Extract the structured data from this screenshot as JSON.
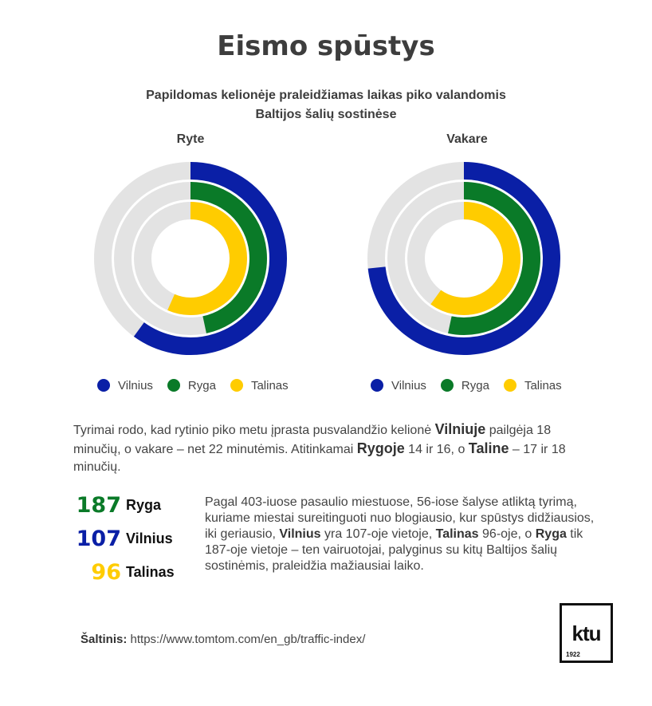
{
  "header": {
    "title": "Eismo spūstys",
    "subtitle_line1": "Papildomas kelionėje praleidžiamas laikas piko valandomis",
    "subtitle_line2": "Baltijos šalių sostinėse"
  },
  "colors": {
    "vilnius": "#0a1fa6",
    "ryga": "#0a7a28",
    "talinas": "#ffcc00",
    "track": "#e3e3e3"
  },
  "chart_data": [
    {
      "type": "donut-radial-bar",
      "title": "Ryte",
      "unit": "minutės iš 30",
      "max": 30,
      "series": [
        {
          "name": "Vilnius",
          "value": 18
        },
        {
          "name": "Ryga",
          "value": 14
        },
        {
          "name": "Talinas",
          "value": 17
        }
      ],
      "legend": "bottom"
    },
    {
      "type": "donut-radial-bar",
      "title": "Vakare",
      "unit": "minutės iš 30",
      "max": 30,
      "series": [
        {
          "name": "Vilnius",
          "value": 22
        },
        {
          "name": "Ryga",
          "value": 16
        },
        {
          "name": "Talinas",
          "value": 18
        }
      ],
      "legend": "bottom"
    }
  ],
  "legend": {
    "vilnius": "Vilnius",
    "ryga": "Ryga",
    "talinas": "Talinas"
  },
  "paragraph1": {
    "p1": "Tyrimai rodo, kad rytinio piko metu įprasta pusvalandžio kelionė ",
    "city1": "Vilniuje",
    "p2": " pailgėja 18 minučių, o vakare – net 22 minutėmis. Atitinkamai ",
    "city2": "Rygoje",
    "p3": " 14 ir 16, o ",
    "city3": "Taline",
    "p4": " – 17 ir 18 minučių."
  },
  "ranks": [
    {
      "number": "187",
      "city": "Ryga",
      "color": "#0a7a28"
    },
    {
      "number": "107",
      "city": "Vilnius",
      "color": "#0a1fa6"
    },
    {
      "number": "96",
      "city": "Talinas",
      "color": "#ffcc00"
    }
  ],
  "paragraph2": {
    "p1": "Pagal 403-iuose pasaulio miestuose, 56-iose šalyse atliktą tyrimą, kuriame miestai sureitinguoti nuo blogiausio, kur spūstys didžiausios, iki geriausio, ",
    "city1": "Vilnius",
    "p2": " yra 107-oje vietoje, ",
    "city2": "Talinas",
    "p3": " 96-oje, o ",
    "city3": "Ryga",
    "p4": " tik 187-oje vietoje – ten vairuotojai, palyginus su kitų Baltijos šalių sostinėmis, praleidžia mažiausiai laiko."
  },
  "source": {
    "label": "Šaltinis:",
    "url": "https://www.tomtom.com/en_gb/traffic-index/"
  },
  "logo": {
    "text": "ktu",
    "year": "1922"
  }
}
